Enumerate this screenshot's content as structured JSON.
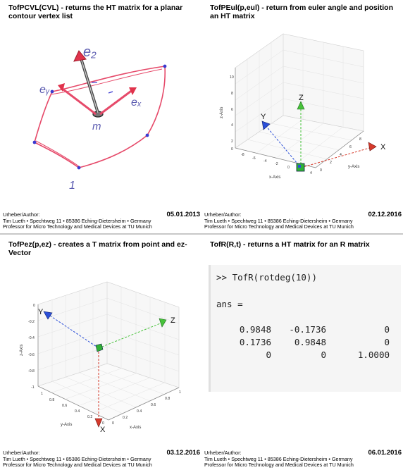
{
  "panels": {
    "top_left": {
      "title": "TofPCVL(CVL) - returns the HT matrix for a planar contour vertex list",
      "sketch_labels": {
        "ez": "e₂",
        "ey": "eᵧ",
        "ex": "eₓ",
        "m": "m",
        "one": "1"
      },
      "footer": {
        "label": "Urheber/Author:",
        "date": "05.01.2013",
        "line2": "Tim Lueth • Spechtweg 11 • 85386 Eching-Dietersheim • Germany",
        "line3": "Professor for Micro Technology and Medical Devices at TU Munich"
      }
    },
    "top_right": {
      "title": "TofPEul(p,eul) - return from euler angle and position an HT matrix",
      "plot": {
        "x_label": "x-Axis",
        "y_label": "y-Axis",
        "z_label": "z-Axis",
        "z_ticks": [
          "10",
          "8",
          "6",
          "4",
          "2",
          "0"
        ],
        "x_ticks": [
          "-8",
          "-6",
          "-4",
          "-2",
          "0",
          "2",
          "4"
        ],
        "y_ticks": [
          "0",
          "2",
          "4",
          "6",
          "8"
        ],
        "axis_markers": {
          "x": "X",
          "y": "Y",
          "z": "Z"
        },
        "colors": {
          "x": "#d63a2b",
          "y": "#2a4ed8",
          "z": "#47c23a"
        }
      },
      "footer": {
        "label": "Urheber/Author:",
        "date": "02.12.2016",
        "line2": "Tim Lueth • Spechtweg 11 • 85386 Eching-Dietersheim • Germany",
        "line3": "Professor for Micro Technology and Medical Devices at TU Munich"
      }
    },
    "bottom_left": {
      "title": "TofPez(p,ez) - creates a T matrix from point and ez-Vector",
      "plot": {
        "x_label": "x-Axis",
        "y_label": "y-Axis",
        "z_label": "z-Axis",
        "z_ticks": [
          "0",
          "-0.2",
          "-0.4",
          "-0.6",
          "-0.8",
          "-1"
        ],
        "y_ticks": [
          "1",
          "0.8",
          "0.6",
          "0.4",
          "0.2",
          "0"
        ],
        "x_ticks": [
          "0",
          "0.2",
          "0.4",
          "0.6",
          "0.8",
          "1"
        ],
        "axis_markers": {
          "x": "X",
          "y": "Y",
          "z": "Z"
        }
      },
      "footer": {
        "label": "Urheber/Author:",
        "date": "03.12.2016",
        "line2": "Tim Lueth • Spechtweg 11 • 85386 Eching-Dietersheim • Germany",
        "line3": "Professor for Micro Technology and Medical Devices at TU Munich"
      }
    },
    "bottom_right": {
      "title": "TofR(R,t) - returns a HT matrix for an R matrix",
      "code": {
        "command": ">> TofR(rotdeg(10))",
        "ans": "ans =",
        "rows": [
          [
            "0.9848",
            "-0.1736",
            "0"
          ],
          [
            "0.1736",
            "0.9848",
            "0"
          ],
          [
            "0",
            "0",
            "1.0000"
          ]
        ]
      },
      "footer": {
        "label": "Urheber/Author:",
        "date": "06.01.2016",
        "line2": "Tim Lueth • Spechtweg 11 • 85386 Eching-Dietersheim • Germany",
        "line3": "Professor for Micro Technology and Medical Devices at TU Munich"
      }
    }
  }
}
